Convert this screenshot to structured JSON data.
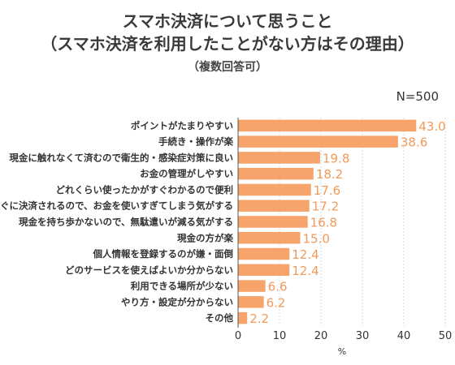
{
  "header": {
    "title_line1": "スマホ決済について思うこと",
    "title_line2": "（スマホ決済を利用したことがない方はその理由）",
    "subtitle": "（複数回答可）",
    "sample_size": "N=500"
  },
  "colors": {
    "bar": "#f6a46b",
    "value_text": "#f19a5a",
    "grid": "#d9d9d9"
  },
  "chart_data": {
    "type": "bar",
    "orientation": "horizontal",
    "categories": [
      "ポイントがたまりやすい",
      "手続き・操作が楽",
      "現金に触れなくて済むので衛生的・感染症対策に良い",
      "お金の管理がしやすい",
      "どれくらい使ったかがすぐわかるので便利",
      "すぐに決済されるので、お金を使いすぎてしまう気がする",
      "現金を持ち歩かないので、無駄遣いが減る気がする",
      "現金の方が楽",
      "個人情報を登録するのが嫌・面倒",
      "どのサービスを使えばよいか分からない",
      "利用できる場所が少ない",
      "やり方・設定が分からない",
      "その他"
    ],
    "values": [
      43.0,
      38.6,
      19.8,
      18.2,
      17.6,
      17.2,
      16.8,
      15.0,
      12.4,
      12.4,
      6.6,
      6.2,
      2.2
    ],
    "value_labels": [
      "43.0",
      "38.6",
      "19.8",
      "18.2",
      "17.6",
      "17.2",
      "16.8",
      "15.0",
      "12.4",
      "12.4",
      "6.6",
      "6.2",
      "2.2"
    ],
    "xlim": [
      0,
      50
    ],
    "xticks": [
      0,
      10,
      20,
      30,
      40,
      50
    ],
    "xtick_labels": [
      "0",
      "10",
      "20",
      "30",
      "40",
      "50"
    ],
    "xlabel": "%",
    "grid": true
  }
}
